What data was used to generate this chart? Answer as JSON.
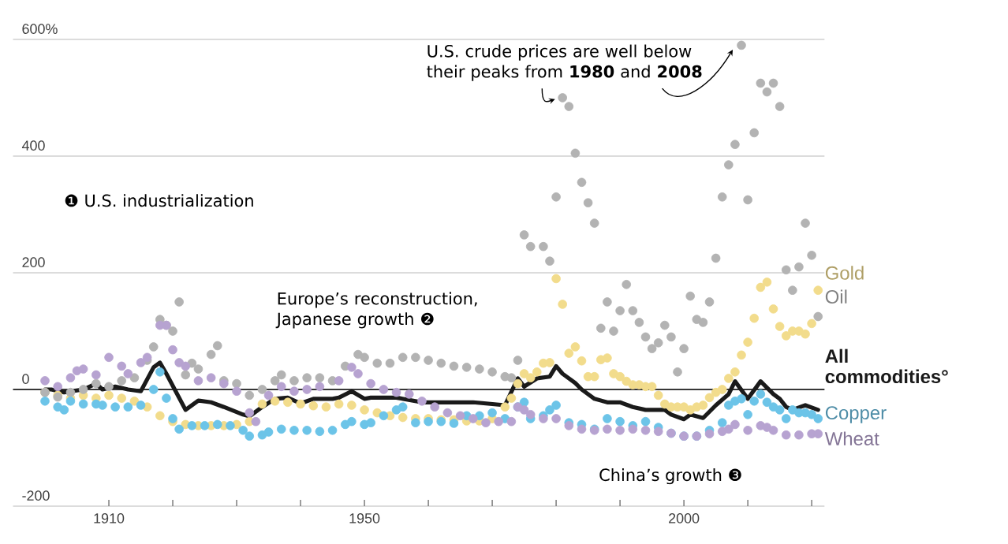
{
  "chart_data": {
    "type": "scatter",
    "annotations": [
      "U.S. crude prices are well below their peaks from **1980** and **2008**",
      "❶ U.S. industrialization",
      "Europe’s reconstruction, Japanese growth ❷",
      "China’s growth ❸"
    ],
    "xlim": [
      1895,
      2022
    ],
    "ylim": [
      -200,
      600
    ],
    "xticks": [
      1910,
      {
        "value": 1920,
        "label": null
      },
      {
        "value": 1930,
        "label": null
      },
      {
        "value": 1940,
        "label": null
      },
      1950,
      {
        "value": 1960,
        "label": null
      },
      {
        "value": 1970,
        "label": null
      },
      {
        "value": 1980,
        "label": null
      },
      {
        "value": 1990,
        "label": null
      },
      2000,
      {
        "value": 2010,
        "label": null
      },
      {
        "value": 2020,
        "label": null
      }
    ],
    "yticks": [
      -200,
      0,
      200,
      400,
      {
        "value": 600,
        "label": "600%"
      }
    ],
    "grid": "y",
    "ref_lines": [
      {
        "axis": "y",
        "value": 0,
        "color": "#000000"
      }
    ],
    "series": [
      {
        "name": "Gold",
        "color": "#f2dc8c",
        "marker": "circle",
        "x": [
          1900,
          1902,
          1904,
          1906,
          1908,
          1910,
          1912,
          1914,
          1916,
          1918,
          1920,
          1922,
          1924,
          1926,
          1928,
          1930,
          1932,
          1934,
          1936,
          1938,
          1940,
          1942,
          1944,
          1946,
          1948,
          1950,
          1952,
          1954,
          1956,
          1958,
          1960,
          1962,
          1964,
          1966,
          1968,
          1970,
          1972,
          1973,
          1974,
          1975,
          1976,
          1977,
          1978,
          1979,
          1980,
          1981,
          1982,
          1983,
          1984,
          1985,
          1986,
          1987,
          1988,
          1989,
          1990,
          1991,
          1992,
          1993,
          1994,
          1995,
          1996,
          1997,
          1998,
          1999,
          2000,
          2001,
          2002,
          2003,
          2004,
          2005,
          2006,
          2007,
          2008,
          2009,
          2010,
          2011,
          2012,
          2013,
          2014,
          2015,
          2016,
          2017,
          2018,
          2019,
          2020,
          2021
        ],
        "values": [
          -5,
          -10,
          -15,
          -10,
          -15,
          -10,
          -15,
          -20,
          -30,
          -45,
          -55,
          -60,
          -62,
          -62,
          -62,
          -60,
          -55,
          -25,
          -20,
          -22,
          -25,
          -28,
          -30,
          -25,
          -27,
          -35,
          -40,
          -45,
          -48,
          -50,
          -50,
          -52,
          -52,
          -54,
          -54,
          -50,
          -30,
          -15,
          10,
          27,
          20,
          30,
          45,
          46,
          190,
          146,
          62,
          73,
          49,
          22,
          22,
          51,
          54,
          27,
          22,
          14,
          8,
          8,
          5,
          5,
          -10,
          -25,
          -30,
          -30,
          -30,
          -35,
          -30,
          -27,
          -14,
          -5,
          0,
          19,
          30,
          59,
          81,
          122,
          175,
          184,
          138,
          108,
          92,
          100,
          100,
          95,
          113,
          170
        ]
      },
      {
        "name": "Oil",
        "color": "#b3b3b3",
        "marker": "circle",
        "x": [
          1900,
          1902,
          1904,
          1906,
          1908,
          1910,
          1912,
          1914,
          1916,
          1917,
          1918,
          1919,
          1920,
          1921,
          1922,
          1923,
          1924,
          1926,
          1927,
          1928,
          1930,
          1932,
          1934,
          1936,
          1937,
          1939,
          1941,
          1943,
          1945,
          1947,
          1949,
          1950,
          1952,
          1954,
          1956,
          1958,
          1960,
          1962,
          1964,
          1966,
          1968,
          1970,
          1972,
          1973,
          1974,
          1975,
          1976,
          1978,
          1979,
          1980,
          1981,
          1982,
          1983,
          1984,
          1985,
          1986,
          1987,
          1988,
          1989,
          1990,
          1991,
          1992,
          1993,
          1994,
          1995,
          1996,
          1997,
          1998,
          1999,
          2000,
          2001,
          2002,
          2003,
          2004,
          2005,
          2006,
          2007,
          2008,
          2009,
          2010,
          2011,
          2012,
          2013,
          2014,
          2015,
          2016,
          2017,
          2018,
          2019,
          2020,
          2021
        ],
        "values": [
          -5,
          -13,
          -5,
          0,
          10,
          5,
          15,
          20,
          50,
          73,
          120,
          110,
          100,
          150,
          25,
          45,
          35,
          60,
          75,
          15,
          10,
          -10,
          0,
          15,
          25,
          15,
          20,
          20,
          15,
          40,
          60,
          55,
          45,
          45,
          55,
          55,
          50,
          45,
          40,
          38,
          35,
          30,
          22,
          20,
          50,
          265,
          245,
          245,
          220,
          330,
          500,
          485,
          405,
          355,
          320,
          285,
          105,
          150,
          100,
          135,
          180,
          135,
          115,
          90,
          70,
          80,
          110,
          90,
          30,
          70,
          160,
          120,
          115,
          150,
          225,
          330,
          385,
          420,
          590,
          325,
          440,
          525,
          510,
          525,
          485,
          205,
          170,
          210,
          285,
          230,
          125
        ]
      },
      {
        "name": "All commodities°",
        "type": "line",
        "marker": "none",
        "color": "#1a1a1a",
        "x": [
          1900,
          1901,
          1903,
          1906,
          1908,
          1909,
          1911,
          1913,
          1915,
          1917,
          1918,
          1919,
          1922,
          1924,
          1926,
          1928,
          1931,
          1932,
          1934,
          1936,
          1938,
          1940,
          1942,
          1945,
          1946,
          1948,
          1950,
          1951,
          1955,
          1959,
          1963,
          1967,
          1972,
          1974,
          1975,
          1977,
          1979,
          1980,
          1981,
          1983,
          1984,
          1986,
          1988,
          1990,
          1992,
          1994,
          1997,
          1998,
          2000,
          2001,
          2003,
          2005,
          2007,
          2008,
          2010,
          2012,
          2014,
          2015,
          2016,
          2017,
          2019,
          2021
        ],
        "values": [
          0,
          0,
          -5,
          0,
          10,
          0,
          5,
          0,
          -3,
          38,
          46,
          27,
          -35,
          -19,
          -22,
          -30,
          -43,
          -46,
          -30,
          -16,
          -14,
          -24,
          -16,
          -16,
          -14,
          -3,
          -16,
          -14,
          -14,
          -22,
          -22,
          -22,
          -27,
          19,
          5,
          19,
          22,
          40,
          27,
          11,
          0,
          -16,
          -22,
          -22,
          -30,
          -35,
          -35,
          -43,
          -51,
          -43,
          -49,
          -27,
          -8,
          14,
          -16,
          14,
          -8,
          -16,
          -30,
          -35,
          -27,
          -35
        ]
      },
      {
        "name": "Copper",
        "color": "#6cc4e8",
        "marker": "circle",
        "x": [
          1900,
          1902,
          1903,
          1904,
          1906,
          1908,
          1909,
          1911,
          1913,
          1915,
          1917,
          1918,
          1919,
          1920,
          1921,
          1923,
          1925,
          1927,
          1929,
          1931,
          1932,
          1934,
          1935,
          1937,
          1939,
          1941,
          1943,
          1945,
          1947,
          1948,
          1950,
          1951,
          1953,
          1955,
          1956,
          1958,
          1960,
          1962,
          1964,
          1966,
          1968,
          1970,
          1972,
          1974,
          1975,
          1976,
          1978,
          1979,
          1980,
          1982,
          1984,
          1986,
          1988,
          1990,
          1992,
          1994,
          1996,
          1998,
          2000,
          2002,
          2004,
          2006,
          2007,
          2008,
          2009,
          2010,
          2011,
          2012,
          2013,
          2014,
          2015,
          2016,
          2017,
          2018,
          2019,
          2020,
          2021
        ],
        "values": [
          -20,
          -30,
          -35,
          -20,
          -25,
          -25,
          -27,
          -30,
          -30,
          -27,
          0,
          30,
          -15,
          -50,
          -68,
          -62,
          -62,
          -60,
          -62,
          -70,
          -80,
          -78,
          -73,
          -68,
          -70,
          -70,
          -72,
          -70,
          -60,
          -55,
          -60,
          -57,
          -45,
          -35,
          -30,
          -57,
          -55,
          -55,
          -58,
          -45,
          -45,
          -40,
          -50,
          -30,
          -22,
          -50,
          -45,
          -35,
          -27,
          -57,
          -60,
          -68,
          -50,
          -55,
          -62,
          -55,
          -65,
          -75,
          -80,
          -80,
          -70,
          -57,
          -27,
          -20,
          -16,
          -43,
          -20,
          -8,
          -22,
          -30,
          -35,
          -50,
          -35,
          -40,
          -40,
          -43,
          -50
        ]
      },
      {
        "name": "Wheat",
        "color": "#b7a3d1",
        "marker": "circle",
        "x": [
          1900,
          1902,
          1904,
          1905,
          1906,
          1908,
          1910,
          1912,
          1913,
          1915,
          1916,
          1918,
          1919,
          1920,
          1921,
          1922,
          1924,
          1926,
          1928,
          1930,
          1932,
          1933,
          1935,
          1937,
          1939,
          1941,
          1943,
          1946,
          1948,
          1949,
          1951,
          1953,
          1955,
          1957,
          1959,
          1961,
          1963,
          1965,
          1967,
          1969,
          1971,
          1973,
          1974,
          1975,
          1976,
          1978,
          1980,
          1982,
          1984,
          1986,
          1988,
          1990,
          1992,
          1994,
          1996,
          1998,
          2000,
          2002,
          2004,
          2006,
          2007,
          2008,
          2010,
          2012,
          2013,
          2014,
          2016,
          2018,
          2020,
          2021
        ],
        "values": [
          15,
          5,
          20,
          32,
          35,
          25,
          55,
          40,
          27,
          46,
          55,
          110,
          110,
          68,
          46,
          40,
          15,
          20,
          10,
          -3,
          -40,
          -55,
          -10,
          5,
          -3,
          0,
          5,
          15,
          38,
          27,
          10,
          0,
          -5,
          -8,
          -20,
          -30,
          -40,
          -45,
          -50,
          -57,
          -55,
          -55,
          -30,
          -35,
          -43,
          -50,
          -50,
          -62,
          -68,
          -70,
          -68,
          -70,
          -68,
          -70,
          -72,
          -75,
          -80,
          -80,
          -76,
          -72,
          -68,
          -60,
          -70,
          -62,
          -65,
          -70,
          -78,
          -78,
          -76,
          -76
        ]
      }
    ]
  }
}
